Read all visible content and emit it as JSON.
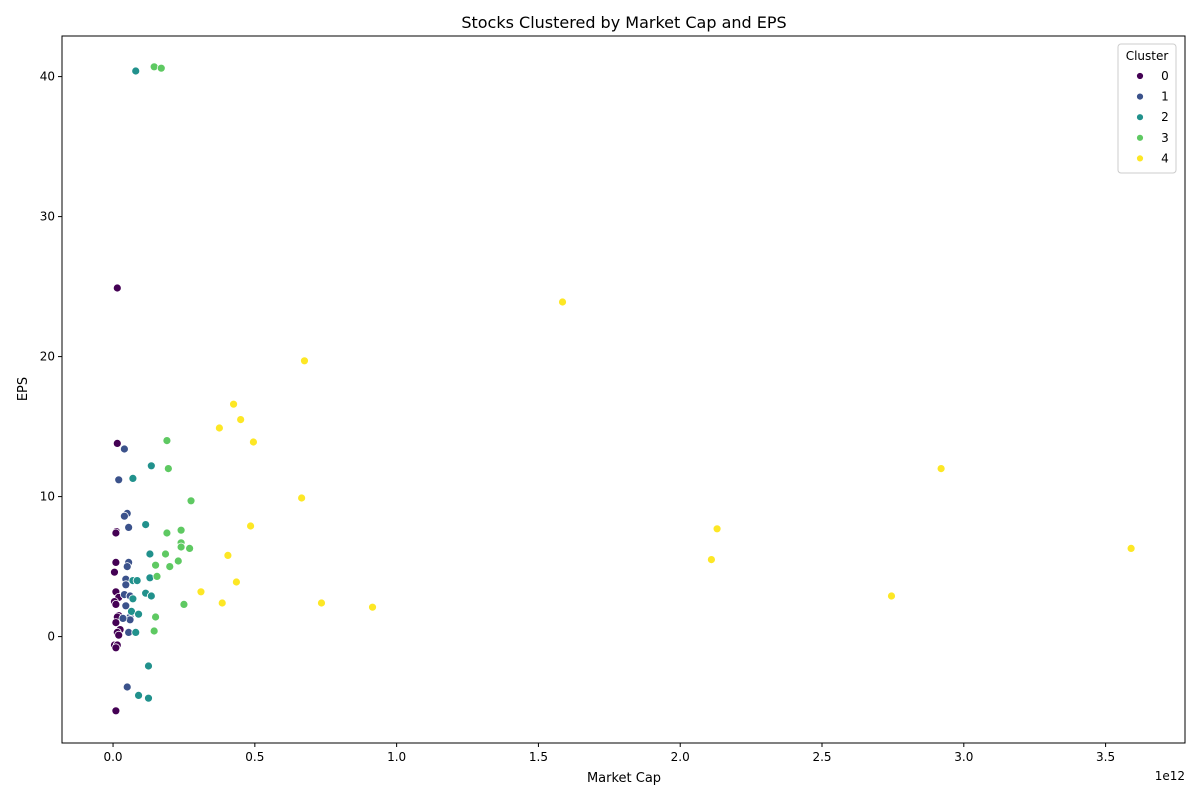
{
  "chart_data": {
    "type": "scatter",
    "title": "Stocks Clustered by Market Cap and EPS",
    "xlabel": "Market Cap",
    "ylabel": "EPS",
    "x_offset_label": "1e12",
    "x_scale": 1000000000000,
    "xlim": [
      -0.18,
      3.78
    ],
    "ylim": [
      -7.6,
      42.9
    ],
    "x_ticks": [
      0.0,
      0.5,
      1.0,
      1.5,
      2.0,
      2.5,
      3.0,
      3.5
    ],
    "x_tick_labels": [
      "0.0",
      "0.5",
      "1.0",
      "1.5",
      "2.0",
      "2.5",
      "3.0",
      "3.5"
    ],
    "y_ticks": [
      0,
      10,
      20,
      30,
      40
    ],
    "y_tick_labels": [
      "0",
      "10",
      "20",
      "30",
      "40"
    ],
    "grid": false,
    "legend": {
      "title": "Cluster",
      "placement": "top-right"
    },
    "series": [
      {
        "name": "0",
        "color": "#440154",
        "points": [
          [
            0.015,
            24.9
          ],
          [
            0.015,
            13.8
          ],
          [
            0.012,
            7.5
          ],
          [
            0.01,
            7.4
          ],
          [
            0.01,
            5.3
          ],
          [
            0.005,
            4.6
          ],
          [
            0.01,
            3.2
          ],
          [
            0.02,
            2.8
          ],
          [
            0.005,
            2.5
          ],
          [
            0.01,
            2.3
          ],
          [
            0.02,
            1.5
          ],
          [
            0.015,
            1.4
          ],
          [
            0.01,
            1.0
          ],
          [
            0.025,
            0.5
          ],
          [
            0.015,
            0.3
          ],
          [
            0.02,
            0.1
          ],
          [
            0.005,
            -0.6
          ],
          [
            0.015,
            -0.6
          ],
          [
            0.01,
            -0.8
          ],
          [
            0.01,
            -5.3
          ]
        ]
      },
      {
        "name": "1",
        "color": "#3b528b",
        "points": [
          [
            0.04,
            13.4
          ],
          [
            0.02,
            11.2
          ],
          [
            0.05,
            8.8
          ],
          [
            0.04,
            8.6
          ],
          [
            0.055,
            7.8
          ],
          [
            0.055,
            5.3
          ],
          [
            0.05,
            5.0
          ],
          [
            0.045,
            4.1
          ],
          [
            0.045,
            3.7
          ],
          [
            0.04,
            3.0
          ],
          [
            0.06,
            2.9
          ],
          [
            0.045,
            2.2
          ],
          [
            0.06,
            1.4
          ],
          [
            0.06,
            1.2
          ],
          [
            0.035,
            1.3
          ],
          [
            0.055,
            0.3
          ],
          [
            0.05,
            -3.6
          ]
        ]
      },
      {
        "name": "2",
        "color": "#21918c",
        "points": [
          [
            0.08,
            40.4
          ],
          [
            0.135,
            12.2
          ],
          [
            0.07,
            11.3
          ],
          [
            0.115,
            8.0
          ],
          [
            0.13,
            5.9
          ],
          [
            0.13,
            4.2
          ],
          [
            0.07,
            4.0
          ],
          [
            0.085,
            4.0
          ],
          [
            0.115,
            3.1
          ],
          [
            0.135,
            2.9
          ],
          [
            0.07,
            2.7
          ],
          [
            0.065,
            1.8
          ],
          [
            0.09,
            1.6
          ],
          [
            0.08,
            0.3
          ],
          [
            0.125,
            -2.1
          ],
          [
            0.09,
            -4.2
          ],
          [
            0.125,
            -4.4
          ]
        ]
      },
      {
        "name": "3",
        "color": "#5ec962",
        "points": [
          [
            0.145,
            40.7
          ],
          [
            0.17,
            40.6
          ],
          [
            0.19,
            14.0
          ],
          [
            0.195,
            12.0
          ],
          [
            0.275,
            9.7
          ],
          [
            0.24,
            7.6
          ],
          [
            0.19,
            7.4
          ],
          [
            0.24,
            6.7
          ],
          [
            0.24,
            6.4
          ],
          [
            0.27,
            6.3
          ],
          [
            0.185,
            5.9
          ],
          [
            0.23,
            5.4
          ],
          [
            0.2,
            5.0
          ],
          [
            0.15,
            5.1
          ],
          [
            0.155,
            4.3
          ],
          [
            0.25,
            2.3
          ],
          [
            0.15,
            1.4
          ],
          [
            0.145,
            0.4
          ]
        ]
      },
      {
        "name": "4",
        "color": "#fde725",
        "points": [
          [
            1.585,
            23.9
          ],
          [
            0.675,
            19.7
          ],
          [
            0.425,
            16.6
          ],
          [
            0.45,
            15.5
          ],
          [
            0.375,
            14.9
          ],
          [
            0.495,
            13.9
          ],
          [
            2.92,
            12.0
          ],
          [
            0.665,
            9.9
          ],
          [
            0.485,
            7.9
          ],
          [
            2.13,
            7.7
          ],
          [
            3.59,
            6.3
          ],
          [
            0.405,
            5.8
          ],
          [
            2.11,
            5.5
          ],
          [
            0.435,
            3.9
          ],
          [
            0.31,
            3.2
          ],
          [
            2.745,
            2.9
          ],
          [
            0.385,
            2.4
          ],
          [
            0.735,
            2.4
          ],
          [
            0.915,
            2.1
          ]
        ]
      }
    ]
  }
}
